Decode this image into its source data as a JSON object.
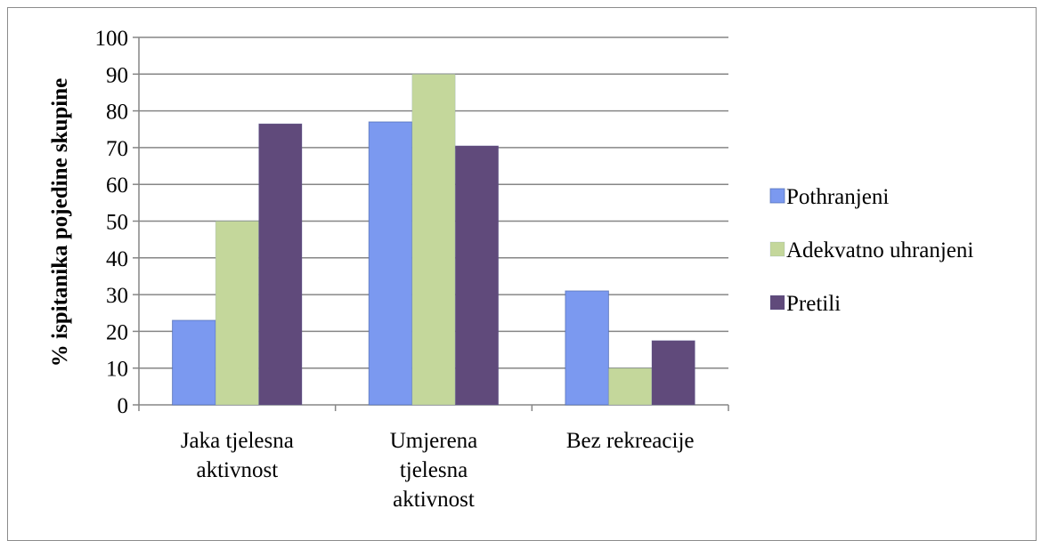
{
  "chart_data": {
    "type": "bar",
    "title": "",
    "xlabel": "",
    "ylabel": "% ispitanika pojedine skupine",
    "ylim": [
      0,
      100
    ],
    "yticks": [
      0,
      10,
      20,
      30,
      40,
      50,
      60,
      70,
      80,
      90,
      100
    ],
    "grid": true,
    "legend_position": "right",
    "categories": [
      [
        "Jaka tjelesna",
        "aktivnost"
      ],
      [
        "Umjerena",
        "tjelesna",
        "aktivnost"
      ],
      [
        "Bez rekreacije"
      ]
    ],
    "series": [
      {
        "name": "Pothranjeni",
        "color": "#7b99f0",
        "values": [
          23,
          77,
          31
        ]
      },
      {
        "name": "Adekvatno uhranjeni",
        "color": "#c4d79b",
        "values": [
          50,
          90,
          10
        ]
      },
      {
        "name": "Pretili",
        "color": "#604a7b",
        "values": [
          76.5,
          70.5,
          17.5
        ]
      }
    ]
  }
}
